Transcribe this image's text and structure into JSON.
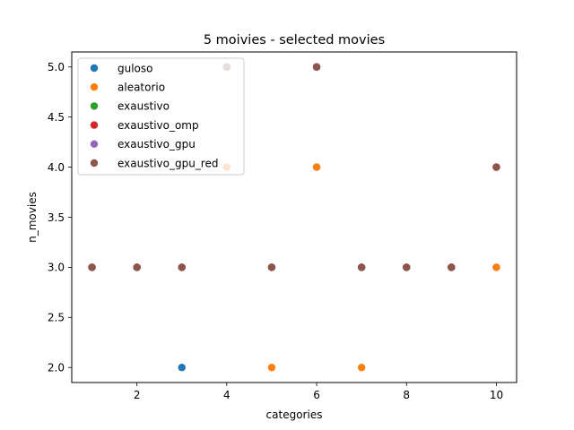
{
  "chart_data": {
    "type": "scatter",
    "title": "5 moivies - selected movies",
    "xlabel": "categories",
    "ylabel": "n_movies",
    "xlim": [
      0.55,
      10.45
    ],
    "ylim": [
      1.85,
      5.15
    ],
    "xticks": [
      2,
      4,
      6,
      8,
      10
    ],
    "xtick_labels": [
      "2",
      "4",
      "6",
      "8",
      "10"
    ],
    "yticks": [
      2.0,
      2.5,
      3.0,
      3.5,
      4.0,
      4.5,
      5.0
    ],
    "ytick_labels": [
      "2.0",
      "2.5",
      "3.0",
      "3.5",
      "4.0",
      "4.5",
      "5.0"
    ],
    "grid": false,
    "legend_position": "upper-left",
    "series": [
      {
        "name": "guloso",
        "color": "#1f77b4",
        "x": [
          1,
          2,
          3,
          4,
          5,
          6,
          7,
          8,
          9,
          10
        ],
        "y": [
          3,
          3,
          2,
          4,
          3,
          4,
          3,
          3,
          3,
          3
        ]
      },
      {
        "name": "aleatorio",
        "color": "#ff7f0e",
        "x": [
          1,
          2,
          3,
          4,
          5,
          6,
          7,
          8,
          9,
          10
        ],
        "y": [
          3,
          3,
          3,
          4,
          2,
          4,
          2,
          3,
          3,
          3
        ]
      },
      {
        "name": "exaustivo",
        "color": "#2ca02c",
        "x": [
          1,
          2,
          3,
          4,
          5,
          6,
          7,
          8,
          9,
          10
        ],
        "y": [
          3,
          3,
          3,
          5,
          3,
          5,
          3,
          3,
          3,
          4
        ]
      },
      {
        "name": "exaustivo_omp",
        "color": "#d62728",
        "x": [
          1,
          2,
          3,
          4,
          5,
          6,
          7,
          8,
          9,
          10
        ],
        "y": [
          3,
          3,
          3,
          5,
          3,
          5,
          3,
          3,
          3,
          4
        ]
      },
      {
        "name": "exaustivo_gpu",
        "color": "#9467bd",
        "x": [
          1,
          2,
          3,
          4,
          5,
          6,
          7,
          8,
          9,
          10
        ],
        "y": [
          3,
          3,
          3,
          5,
          3,
          5,
          3,
          3,
          3,
          4
        ]
      },
      {
        "name": "exaustivo_gpu_red",
        "color": "#8c564b",
        "x": [
          1,
          2,
          3,
          4,
          5,
          6,
          7,
          8,
          9,
          10
        ],
        "y": [
          3,
          3,
          3,
          5,
          3,
          5,
          3,
          3,
          3,
          4
        ]
      }
    ]
  }
}
